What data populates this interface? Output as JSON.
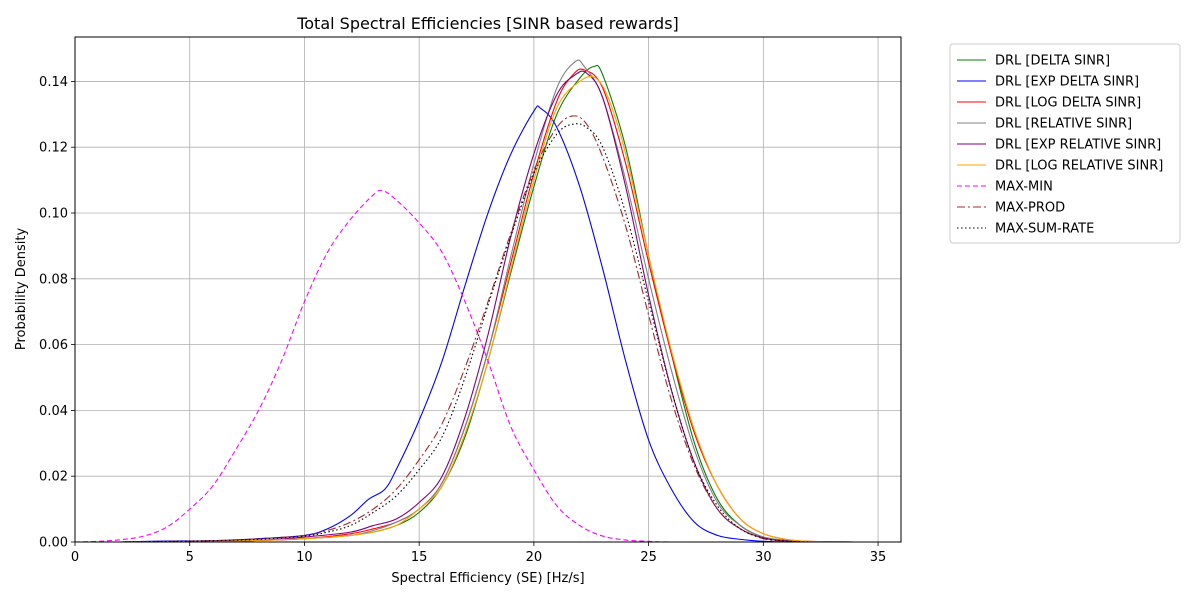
{
  "chart_data": {
    "type": "line",
    "title": "Total Spectral Efficiencies [SINR based rewards]",
    "xlabel": "Spectral Efficiency (SE) [Hz/s]",
    "ylabel": "Probability Density",
    "xlim": [
      0,
      36
    ],
    "ylim": [
      0,
      0.1535
    ],
    "xticks": [
      0,
      5,
      10,
      15,
      20,
      25,
      30,
      35
    ],
    "yticks": [
      0.0,
      0.02,
      0.04,
      0.06,
      0.08,
      0.1,
      0.12,
      0.14
    ],
    "ytick_labels": [
      "0.00",
      "0.02",
      "0.04",
      "0.06",
      "0.08",
      "0.10",
      "0.12",
      "0.14"
    ],
    "grid": true,
    "legend_position": "outside-right",
    "series": [
      {
        "name": "DRL [DELTA SINR]",
        "color": "#008000",
        "dash": "solid",
        "points": [
          [
            2,
            0
          ],
          [
            6,
            0.0002
          ],
          [
            8,
            0.0005
          ],
          [
            10,
            0.001
          ],
          [
            12,
            0.002
          ],
          [
            13,
            0.003
          ],
          [
            14,
            0.005
          ],
          [
            15,
            0.009
          ],
          [
            16,
            0.017
          ],
          [
            17,
            0.032
          ],
          [
            18,
            0.055
          ],
          [
            19,
            0.082
          ],
          [
            20,
            0.108
          ],
          [
            21,
            0.13
          ],
          [
            22,
            0.141
          ],
          [
            22.6,
            0.1445
          ],
          [
            23,
            0.142
          ],
          [
            24,
            0.12
          ],
          [
            25,
            0.087
          ],
          [
            26,
            0.057
          ],
          [
            27,
            0.03
          ],
          [
            28,
            0.013
          ],
          [
            29,
            0.005
          ],
          [
            30,
            0.0015
          ],
          [
            31,
            0.0005
          ],
          [
            32,
            0.0001
          ],
          [
            34,
            0
          ]
        ]
      },
      {
        "name": "DRL [EXP DELTA SINR]",
        "color": "#0000ff",
        "dash": "solid",
        "points": [
          [
            2,
            0
          ],
          [
            4,
            0.0003
          ],
          [
            6,
            0.0004
          ],
          [
            8,
            0.001
          ],
          [
            10,
            0.002
          ],
          [
            11,
            0.004
          ],
          [
            12,
            0.008
          ],
          [
            12.8,
            0.013
          ],
          [
            13.5,
            0.016
          ],
          [
            14,
            0.022
          ],
          [
            15,
            0.037
          ],
          [
            16,
            0.055
          ],
          [
            17,
            0.078
          ],
          [
            18,
            0.1
          ],
          [
            19,
            0.118
          ],
          [
            20,
            0.131
          ],
          [
            20.3,
            0.1318
          ],
          [
            21,
            0.126
          ],
          [
            22,
            0.108
          ],
          [
            23,
            0.083
          ],
          [
            24,
            0.055
          ],
          [
            25,
            0.031
          ],
          [
            26,
            0.016
          ],
          [
            27,
            0.006
          ],
          [
            28,
            0.002
          ],
          [
            29,
            0.0008
          ],
          [
            30,
            0.0002
          ],
          [
            31,
            0
          ]
        ]
      },
      {
        "name": "DRL [LOG DELTA SINR]",
        "color": "#ff0000",
        "dash": "solid",
        "points": [
          [
            2,
            0
          ],
          [
            6,
            0.0002
          ],
          [
            8,
            0.0005
          ],
          [
            10,
            0.001
          ],
          [
            12,
            0.0025
          ],
          [
            13,
            0.004
          ],
          [
            14,
            0.006
          ],
          [
            15,
            0.01
          ],
          [
            16,
            0.018
          ],
          [
            17,
            0.035
          ],
          [
            18,
            0.058
          ],
          [
            19,
            0.085
          ],
          [
            20,
            0.112
          ],
          [
            21,
            0.134
          ],
          [
            21.7,
            0.142
          ],
          [
            22.2,
            0.1435
          ],
          [
            23,
            0.138
          ],
          [
            24,
            0.115
          ],
          [
            25,
            0.085
          ],
          [
            26,
            0.057
          ],
          [
            27,
            0.033
          ],
          [
            28,
            0.017
          ],
          [
            29,
            0.007
          ],
          [
            30,
            0.0025
          ],
          [
            31,
            0.0008
          ],
          [
            32,
            0.0002
          ],
          [
            34,
            0
          ]
        ]
      },
      {
        "name": "DRL [RELATIVE SINR]",
        "color": "#808080",
        "dash": "solid",
        "points": [
          [
            2,
            0
          ],
          [
            6,
            0.0002
          ],
          [
            8,
            0.0005
          ],
          [
            10,
            0.001
          ],
          [
            12,
            0.002
          ],
          [
            13,
            0.0035
          ],
          [
            14,
            0.006
          ],
          [
            15,
            0.01
          ],
          [
            16,
            0.018
          ],
          [
            17,
            0.035
          ],
          [
            18,
            0.058
          ],
          [
            19,
            0.087
          ],
          [
            20,
            0.115
          ],
          [
            21,
            0.138
          ],
          [
            21.8,
            0.146
          ],
          [
            22.2,
            0.1445
          ],
          [
            23,
            0.135
          ],
          [
            24,
            0.11
          ],
          [
            25,
            0.08
          ],
          [
            26,
            0.052
          ],
          [
            27,
            0.028
          ],
          [
            28,
            0.012
          ],
          [
            29,
            0.005
          ],
          [
            30,
            0.0015
          ],
          [
            31,
            0.0004
          ],
          [
            32,
            0
          ],
          [
            34,
            0
          ]
        ]
      },
      {
        "name": "DRL [EXP RELATIVE SINR]",
        "color": "#800080",
        "dash": "solid",
        "points": [
          [
            2,
            0
          ],
          [
            6,
            0.0002
          ],
          [
            8,
            0.0005
          ],
          [
            10,
            0.0015
          ],
          [
            12,
            0.003
          ],
          [
            13,
            0.005
          ],
          [
            14,
            0.007
          ],
          [
            15,
            0.012
          ],
          [
            16,
            0.02
          ],
          [
            17,
            0.038
          ],
          [
            18,
            0.063
          ],
          [
            19,
            0.093
          ],
          [
            20,
            0.118
          ],
          [
            21,
            0.136
          ],
          [
            21.8,
            0.142
          ],
          [
            22.3,
            0.1425
          ],
          [
            23,
            0.135
          ],
          [
            24,
            0.108
          ],
          [
            25,
            0.075
          ],
          [
            26,
            0.046
          ],
          [
            27,
            0.024
          ],
          [
            28,
            0.01
          ],
          [
            29,
            0.004
          ],
          [
            30,
            0.0012
          ],
          [
            31,
            0.0003
          ],
          [
            32,
            0
          ],
          [
            34,
            0
          ]
        ]
      },
      {
        "name": "DRL [LOG RELATIVE SINR]",
        "color": "#ffa500",
        "dash": "solid",
        "points": [
          [
            2,
            0
          ],
          [
            6,
            0.0002
          ],
          [
            8,
            0.0005
          ],
          [
            10,
            0.001
          ],
          [
            12,
            0.002
          ],
          [
            13,
            0.003
          ],
          [
            14,
            0.005
          ],
          [
            15,
            0.01
          ],
          [
            16,
            0.017
          ],
          [
            17,
            0.033
          ],
          [
            18,
            0.055
          ],
          [
            19,
            0.083
          ],
          [
            20,
            0.11
          ],
          [
            21,
            0.132
          ],
          [
            22,
            0.14
          ],
          [
            22.7,
            0.141
          ],
          [
            23.3,
            0.134
          ],
          [
            24,
            0.118
          ],
          [
            25,
            0.087
          ],
          [
            26,
            0.058
          ],
          [
            27,
            0.034
          ],
          [
            28,
            0.017
          ],
          [
            29,
            0.007
          ],
          [
            30,
            0.0025
          ],
          [
            31,
            0.0008
          ],
          [
            32,
            0.0002
          ],
          [
            34,
            0
          ]
        ]
      },
      {
        "name": "MAX-MIN",
        "color": "#ff00ff",
        "dash": "5,3",
        "points": [
          [
            0,
            0
          ],
          [
            1,
            0.0002
          ],
          [
            2,
            0.0007
          ],
          [
            3,
            0.0018
          ],
          [
            4,
            0.0045
          ],
          [
            5,
            0.01
          ],
          [
            6,
            0.017
          ],
          [
            7,
            0.028
          ],
          [
            8,
            0.04
          ],
          [
            9,
            0.055
          ],
          [
            10,
            0.073
          ],
          [
            11,
            0.088
          ],
          [
            12,
            0.098
          ],
          [
            13,
            0.1055
          ],
          [
            13.4,
            0.1068
          ],
          [
            14,
            0.104
          ],
          [
            15,
            0.097
          ],
          [
            16,
            0.088
          ],
          [
            17,
            0.073
          ],
          [
            18,
            0.055
          ],
          [
            19,
            0.035
          ],
          [
            20,
            0.022
          ],
          [
            21,
            0.011
          ],
          [
            22,
            0.005
          ],
          [
            23,
            0.0018
          ],
          [
            24,
            0.0006
          ],
          [
            25,
            0.0002
          ],
          [
            26,
            0
          ],
          [
            30,
            0
          ]
        ]
      },
      {
        "name": "MAX-PROD",
        "color": "#a52a2a",
        "dash": "8,3,2,3",
        "points": [
          [
            2,
            0
          ],
          [
            4,
            0.0002
          ],
          [
            6,
            0.0004
          ],
          [
            8,
            0.001
          ],
          [
            10,
            0.002
          ],
          [
            11,
            0.0035
          ],
          [
            12,
            0.006
          ],
          [
            13,
            0.01
          ],
          [
            14,
            0.016
          ],
          [
            15,
            0.025
          ],
          [
            16,
            0.036
          ],
          [
            17,
            0.053
          ],
          [
            18,
            0.073
          ],
          [
            19,
            0.094
          ],
          [
            20,
            0.113
          ],
          [
            21,
            0.126
          ],
          [
            21.7,
            0.1295
          ],
          [
            22.3,
            0.127
          ],
          [
            23,
            0.117
          ],
          [
            24,
            0.096
          ],
          [
            25,
            0.069
          ],
          [
            26,
            0.043
          ],
          [
            27,
            0.023
          ],
          [
            28,
            0.01
          ],
          [
            29,
            0.004
          ],
          [
            30,
            0.001
          ],
          [
            31,
            0.0002
          ],
          [
            32,
            0
          ]
        ]
      },
      {
        "name": "MAX-SUM-RATE",
        "color": "#000000",
        "dash": "1.5,2.5",
        "points": [
          [
            2,
            0
          ],
          [
            4,
            0.0002
          ],
          [
            6,
            0.0004
          ],
          [
            8,
            0.0008
          ],
          [
            10,
            0.0018
          ],
          [
            11,
            0.003
          ],
          [
            12,
            0.005
          ],
          [
            13,
            0.009
          ],
          [
            14,
            0.014
          ],
          [
            15,
            0.022
          ],
          [
            16,
            0.032
          ],
          [
            17,
            0.05
          ],
          [
            18,
            0.072
          ],
          [
            19,
            0.093
          ],
          [
            20,
            0.112
          ],
          [
            21,
            0.124
          ],
          [
            21.7,
            0.127
          ],
          [
            22.3,
            0.126
          ],
          [
            23,
            0.12
          ],
          [
            24,
            0.1
          ],
          [
            25,
            0.073
          ],
          [
            26,
            0.046
          ],
          [
            27,
            0.024
          ],
          [
            28,
            0.011
          ],
          [
            29,
            0.004
          ],
          [
            30,
            0.0012
          ],
          [
            31,
            0.0003
          ],
          [
            32,
            0
          ]
        ]
      }
    ]
  }
}
